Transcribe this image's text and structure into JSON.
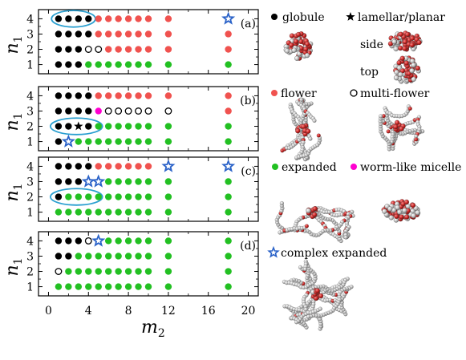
{
  "colors": {
    "globule": "#000000",
    "lamellar": "#000000",
    "flower": "#f0524f",
    "multi_flower": "#000000",
    "expanded": "#22c022",
    "worm_like_micelle": "#ff00d0",
    "complex_expanded": "#2a62c8",
    "ellipse": "#2a9fd0"
  },
  "chart_data": {
    "type": "scatter",
    "xlabel_main": "m",
    "xlabel_sub": "2",
    "ylabel_main": "n",
    "ylabel_sub": "1",
    "xlim": [
      -1,
      21
    ],
    "ylim": [
      0.4,
      4.6
    ],
    "xticks": [
      0,
      4,
      8,
      12,
      16,
      20
    ],
    "yticks": [
      1,
      2,
      3,
      4
    ],
    "legend": [
      {
        "key": "globule",
        "label": "globule",
        "marker": "filled-circle"
      },
      {
        "key": "lamellar",
        "label": "lamellar/planar",
        "marker": "star-filled"
      },
      {
        "key": "flower",
        "label": "flower",
        "marker": "filled-circle"
      },
      {
        "key": "multi_flower",
        "label": "multi-flower",
        "marker": "open-circle"
      },
      {
        "key": "expanded",
        "label": "expanded",
        "marker": "filled-circle"
      },
      {
        "key": "worm_like_micelle",
        "label": "worm-like micelle",
        "marker": "filled-circle"
      },
      {
        "key": "complex_expanded",
        "label": "complex expanded",
        "marker": "open-star"
      }
    ],
    "snapshot_labels": {
      "side": "side",
      "top": "top"
    },
    "panels": [
      {
        "label": "(a)",
        "rows": [
          {
            "n1": 4,
            "points": [
              [
                1,
                "globule"
              ],
              [
                2,
                "globule"
              ],
              [
                3,
                "globule"
              ],
              [
                4,
                "globule"
              ],
              [
                5,
                "flower"
              ],
              [
                6,
                "flower"
              ],
              [
                7,
                "flower"
              ],
              [
                8,
                "flower"
              ],
              [
                9,
                "flower"
              ],
              [
                10,
                "flower"
              ],
              [
                12,
                "flower"
              ],
              [
                18,
                "complex_expanded"
              ]
            ]
          },
          {
            "n1": 3,
            "points": [
              [
                1,
                "globule"
              ],
              [
                2,
                "globule"
              ],
              [
                3,
                "globule"
              ],
              [
                4,
                "globule"
              ],
              [
                5,
                "flower"
              ],
              [
                6,
                "flower"
              ],
              [
                7,
                "flower"
              ],
              [
                8,
                "flower"
              ],
              [
                9,
                "flower"
              ],
              [
                10,
                "flower"
              ],
              [
                12,
                "flower"
              ],
              [
                18,
                "flower"
              ]
            ]
          },
          {
            "n1": 2,
            "points": [
              [
                1,
                "globule"
              ],
              [
                2,
                "globule"
              ],
              [
                3,
                "globule"
              ],
              [
                4,
                "multi_flower"
              ],
              [
                5,
                "multi_flower"
              ],
              [
                6,
                "flower"
              ],
              [
                7,
                "flower"
              ],
              [
                8,
                "flower"
              ],
              [
                9,
                "flower"
              ],
              [
                10,
                "flower"
              ],
              [
                12,
                "flower"
              ],
              [
                18,
                "flower"
              ]
            ]
          },
          {
            "n1": 1,
            "points": [
              [
                1,
                "globule"
              ],
              [
                2,
                "globule"
              ],
              [
                3,
                "globule"
              ],
              [
                4,
                "expanded"
              ],
              [
                5,
                "expanded"
              ],
              [
                6,
                "expanded"
              ],
              [
                7,
                "expanded"
              ],
              [
                8,
                "expanded"
              ],
              [
                9,
                "expanded"
              ],
              [
                10,
                "expanded"
              ],
              [
                12,
                "expanded"
              ],
              [
                18,
                "expanded"
              ]
            ]
          }
        ],
        "ellipse": {
          "cx": 2.5,
          "cy": 4,
          "rx": 2.2,
          "ry": 0.4
        }
      },
      {
        "label": "(b)",
        "rows": [
          {
            "n1": 4,
            "points": [
              [
                1,
                "globule"
              ],
              [
                2,
                "globule"
              ],
              [
                3,
                "globule"
              ],
              [
                4,
                "globule"
              ],
              [
                5,
                "flower"
              ],
              [
                6,
                "flower"
              ],
              [
                7,
                "flower"
              ],
              [
                8,
                "flower"
              ],
              [
                9,
                "flower"
              ],
              [
                10,
                "flower"
              ],
              [
                12,
                "flower"
              ],
              [
                18,
                "flower"
              ]
            ]
          },
          {
            "n1": 3,
            "points": [
              [
                1,
                "globule"
              ],
              [
                2,
                "globule"
              ],
              [
                3,
                "globule"
              ],
              [
                4,
                "globule"
              ],
              [
                5,
                "worm_like_micelle"
              ],
              [
                6,
                "multi_flower"
              ],
              [
                7,
                "multi_flower"
              ],
              [
                8,
                "multi_flower"
              ],
              [
                9,
                "multi_flower"
              ],
              [
                10,
                "multi_flower"
              ],
              [
                12,
                "multi_flower"
              ],
              [
                18,
                "flower"
              ]
            ]
          },
          {
            "n1": 2,
            "points": [
              [
                1,
                "globule"
              ],
              [
                2,
                "globule"
              ],
              [
                3,
                "lamellar"
              ],
              [
                4,
                "globule"
              ],
              [
                5,
                "expanded"
              ],
              [
                6,
                "expanded"
              ],
              [
                7,
                "expanded"
              ],
              [
                8,
                "expanded"
              ],
              [
                9,
                "expanded"
              ],
              [
                10,
                "expanded"
              ],
              [
                12,
                "expanded"
              ],
              [
                18,
                "expanded"
              ]
            ]
          },
          {
            "n1": 1,
            "points": [
              [
                1,
                "globule"
              ],
              [
                2,
                "complex_expanded"
              ],
              [
                3,
                "expanded"
              ],
              [
                4,
                "expanded"
              ],
              [
                5,
                "expanded"
              ],
              [
                6,
                "expanded"
              ],
              [
                7,
                "expanded"
              ],
              [
                8,
                "expanded"
              ],
              [
                9,
                "expanded"
              ],
              [
                10,
                "expanded"
              ],
              [
                12,
                "expanded"
              ],
              [
                18,
                "expanded"
              ]
            ]
          }
        ],
        "ellipse": {
          "cx": 2.8,
          "cy": 2,
          "rx": 2.6,
          "ry": 0.4
        }
      },
      {
        "label": "(c)",
        "rows": [
          {
            "n1": 4,
            "points": [
              [
                1,
                "globule"
              ],
              [
                2,
                "globule"
              ],
              [
                3,
                "globule"
              ],
              [
                4,
                "globule"
              ],
              [
                5,
                "flower"
              ],
              [
                6,
                "flower"
              ],
              [
                7,
                "flower"
              ],
              [
                8,
                "flower"
              ],
              [
                9,
                "flower"
              ],
              [
                10,
                "flower"
              ],
              [
                12,
                "complex_expanded"
              ],
              [
                18,
                "complex_expanded"
              ]
            ]
          },
          {
            "n1": 3,
            "points": [
              [
                1,
                "globule"
              ],
              [
                2,
                "globule"
              ],
              [
                3,
                "globule"
              ],
              [
                4,
                "complex_expanded"
              ],
              [
                5,
                "complex_expanded"
              ],
              [
                6,
                "expanded"
              ],
              [
                7,
                "expanded"
              ],
              [
                8,
                "expanded"
              ],
              [
                9,
                "expanded"
              ],
              [
                10,
                "expanded"
              ],
              [
                12,
                "expanded"
              ],
              [
                18,
                "expanded"
              ]
            ]
          },
          {
            "n1": 2,
            "points": [
              [
                1,
                "globule"
              ],
              [
                2,
                "expanded"
              ],
              [
                3,
                "expanded"
              ],
              [
                4,
                "expanded"
              ],
              [
                5,
                "expanded"
              ],
              [
                6,
                "expanded"
              ],
              [
                7,
                "expanded"
              ],
              [
                8,
                "expanded"
              ],
              [
                9,
                "expanded"
              ],
              [
                10,
                "expanded"
              ],
              [
                12,
                "expanded"
              ],
              [
                18,
                "expanded"
              ]
            ]
          },
          {
            "n1": 1,
            "points": [
              [
                1,
                "expanded"
              ],
              [
                2,
                "expanded"
              ],
              [
                3,
                "expanded"
              ],
              [
                4,
                "expanded"
              ],
              [
                5,
                "expanded"
              ],
              [
                6,
                "expanded"
              ],
              [
                7,
                "expanded"
              ],
              [
                8,
                "expanded"
              ],
              [
                9,
                "expanded"
              ],
              [
                10,
                "expanded"
              ],
              [
                12,
                "expanded"
              ],
              [
                18,
                "expanded"
              ]
            ]
          }
        ],
        "ellipse": {
          "cx": 2.8,
          "cy": 2,
          "rx": 2.6,
          "ry": 0.4
        }
      },
      {
        "label": "(d)",
        "rows": [
          {
            "n1": 4,
            "points": [
              [
                1,
                "globule"
              ],
              [
                2,
                "globule"
              ],
              [
                3,
                "globule"
              ],
              [
                4,
                "multi_flower"
              ],
              [
                5,
                "complex_expanded"
              ],
              [
                6,
                "expanded"
              ],
              [
                7,
                "expanded"
              ],
              [
                8,
                "expanded"
              ],
              [
                9,
                "expanded"
              ],
              [
                10,
                "expanded"
              ],
              [
                12,
                "expanded"
              ],
              [
                18,
                "expanded"
              ]
            ]
          },
          {
            "n1": 3,
            "points": [
              [
                1,
                "globule"
              ],
              [
                2,
                "globule"
              ],
              [
                3,
                "expanded"
              ],
              [
                4,
                "expanded"
              ],
              [
                5,
                "expanded"
              ],
              [
                6,
                "expanded"
              ],
              [
                7,
                "expanded"
              ],
              [
                8,
                "expanded"
              ],
              [
                9,
                "expanded"
              ],
              [
                10,
                "expanded"
              ],
              [
                12,
                "expanded"
              ],
              [
                18,
                "expanded"
              ]
            ]
          },
          {
            "n1": 2,
            "points": [
              [
                1,
                "multi_flower"
              ],
              [
                2,
                "expanded"
              ],
              [
                3,
                "expanded"
              ],
              [
                4,
                "expanded"
              ],
              [
                5,
                "expanded"
              ],
              [
                6,
                "expanded"
              ],
              [
                7,
                "expanded"
              ],
              [
                8,
                "expanded"
              ],
              [
                9,
                "expanded"
              ],
              [
                10,
                "expanded"
              ],
              [
                12,
                "expanded"
              ],
              [
                18,
                "expanded"
              ]
            ]
          },
          {
            "n1": 1,
            "points": [
              [
                1,
                "expanded"
              ],
              [
                2,
                "expanded"
              ],
              [
                3,
                "expanded"
              ],
              [
                4,
                "expanded"
              ],
              [
                5,
                "expanded"
              ],
              [
                6,
                "expanded"
              ],
              [
                7,
                "expanded"
              ],
              [
                8,
                "expanded"
              ],
              [
                9,
                "expanded"
              ],
              [
                10,
                "expanded"
              ],
              [
                12,
                "expanded"
              ],
              [
                18,
                "expanded"
              ]
            ]
          }
        ],
        "ellipse": null
      }
    ]
  }
}
